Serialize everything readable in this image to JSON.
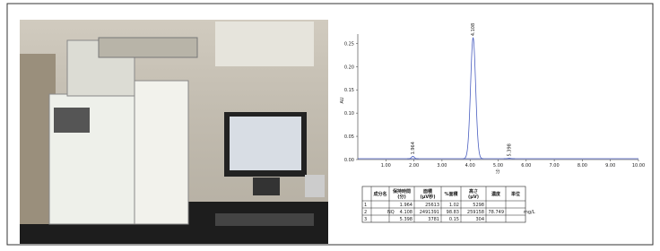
{
  "chromatogram": {
    "y_label": "AU",
    "x_label": "分",
    "ylim": [
      0,
      0.27
    ],
    "xlim": [
      0,
      10
    ],
    "yticks": [
      {
        "value": 0,
        "label": "0.00"
      },
      0.05,
      {
        "value": 0.1,
        "label": "0.10"
      },
      0.15,
      {
        "value": 0.2,
        "label": "0.20"
      },
      0.25
    ],
    "xticks": [
      {
        "value": 1,
        "label": "1.00"
      },
      {
        "value": 2,
        "label": "2.00"
      },
      {
        "value": 3,
        "label": "3.00"
      },
      {
        "value": 4,
        "label": "4.00"
      },
      {
        "value": 5,
        "label": "5.00"
      },
      {
        "value": 6,
        "label": "6.00"
      },
      {
        "value": 7,
        "label": "7.00"
      },
      {
        "value": 8,
        "label": "8.00"
      },
      {
        "value": 9,
        "label": "9.00"
      },
      {
        "value": 10,
        "label": "10.00"
      }
    ],
    "peaks": [
      {
        "x": 1.964,
        "height": 0.005,
        "label": "1.964"
      },
      {
        "x": 4.108,
        "height": 0.26,
        "label": "4.108"
      },
      {
        "x": 5.398,
        "height": 0.001,
        "label": "5.398"
      }
    ]
  },
  "table": {
    "header": [
      null,
      "成分名",
      "保持時間\n(分)",
      "面積\n(μV秒)",
      "%面積",
      "高さ\n(μV)",
      "濃度",
      "単位"
    ],
    "rows": [
      [
        "1",
        null,
        "1.964",
        "25613",
        "1.02",
        "5298",
        null,
        null
      ],
      [
        "2",
        "NQ",
        "4.108",
        "2491391",
        "98.83",
        "259158",
        "78.749",
        "mg/L"
      ],
      [
        "3",
        null,
        "5.398",
        "3781",
        "0.15",
        "304",
        null,
        null
      ]
    ]
  }
}
